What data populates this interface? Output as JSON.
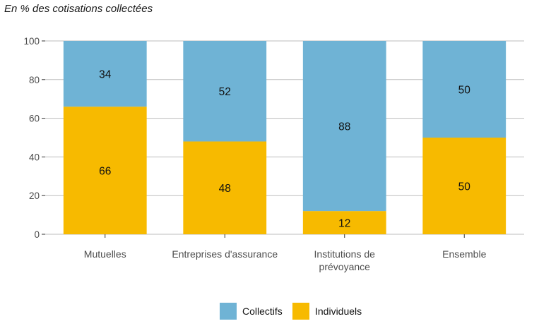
{
  "title": "En % des cotisations collectées",
  "chart_data": {
    "type": "bar",
    "stacked": true,
    "categories": [
      "Mutuelles",
      "Entreprises d'assurance",
      "Institutions de prévoyance",
      "Ensemble"
    ],
    "category_lines": [
      [
        "Mutuelles"
      ],
      [
        "Entreprises d'assurance"
      ],
      [
        "Institutions de",
        "prévoyance"
      ],
      [
        "Ensemble"
      ]
    ],
    "series": [
      {
        "name": "Individuels",
        "values": [
          66,
          48,
          12,
          50
        ],
        "color": "#F7BA00"
      },
      {
        "name": "Collectifs",
        "values": [
          34,
          52,
          88,
          50
        ],
        "color": "#6FB3D5"
      }
    ],
    "legend_order": [
      "Collectifs",
      "Individuels"
    ],
    "ylim": [
      0,
      100
    ],
    "yticks": [
      0,
      20,
      40,
      60,
      80,
      100
    ],
    "xlabel": "",
    "ylabel": "",
    "grid": true,
    "legend_position": "bottom"
  }
}
